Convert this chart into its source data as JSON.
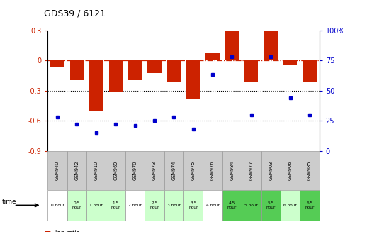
{
  "title": "GDS39 / 6121",
  "samples": [
    "GSM940",
    "GSM942",
    "GSM910",
    "GSM969",
    "GSM970",
    "GSM973",
    "GSM974",
    "GSM975",
    "GSM976",
    "GSM984",
    "GSM977",
    "GSM903",
    "GSM906",
    "GSM985"
  ],
  "time_labels": [
    "0 hour",
    "0.5\nhour",
    "1 hour",
    "1.5\nhour",
    "2 hour",
    "2.5\nhour",
    "3 hour",
    "3.5\nhour",
    "4 hour",
    "4.5\nhour",
    "5 hour",
    "5.5\nhour",
    "6 hour",
    "6.5\nhour"
  ],
  "log_ratio": [
    -0.07,
    -0.2,
    -0.5,
    -0.32,
    -0.2,
    -0.13,
    -0.22,
    -0.38,
    0.07,
    0.31,
    -0.21,
    0.29,
    -0.04,
    -0.22
  ],
  "percentile": [
    28,
    22,
    15,
    22,
    21,
    25,
    28,
    18,
    63,
    78,
    30,
    78,
    44,
    30
  ],
  "ylim_left": [
    -0.9,
    0.3
  ],
  "ylim_right": [
    0,
    100
  ],
  "yticks_left": [
    -0.9,
    -0.6,
    -0.3,
    0,
    0.3
  ],
  "yticks_right": [
    0,
    25,
    50,
    75,
    100
  ],
  "bar_color": "#cc2200",
  "dot_color": "#0000cc",
  "hline_color": "#cc2200",
  "dotline_color": "#000000",
  "bg_color": "#ffffff",
  "gsm_bg": "#cccccc",
  "time_colors": [
    "#ffffff",
    "#ccffcc",
    "#ccffcc",
    "#ccffcc",
    "#ffffff",
    "#ccffcc",
    "#ccffcc",
    "#ccffcc",
    "#ffffff",
    "#55cc55",
    "#55cc55",
    "#55cc55",
    "#ccffcc",
    "#55cc55"
  ],
  "legend_red": "#cc2200",
  "legend_blue": "#0000cc"
}
